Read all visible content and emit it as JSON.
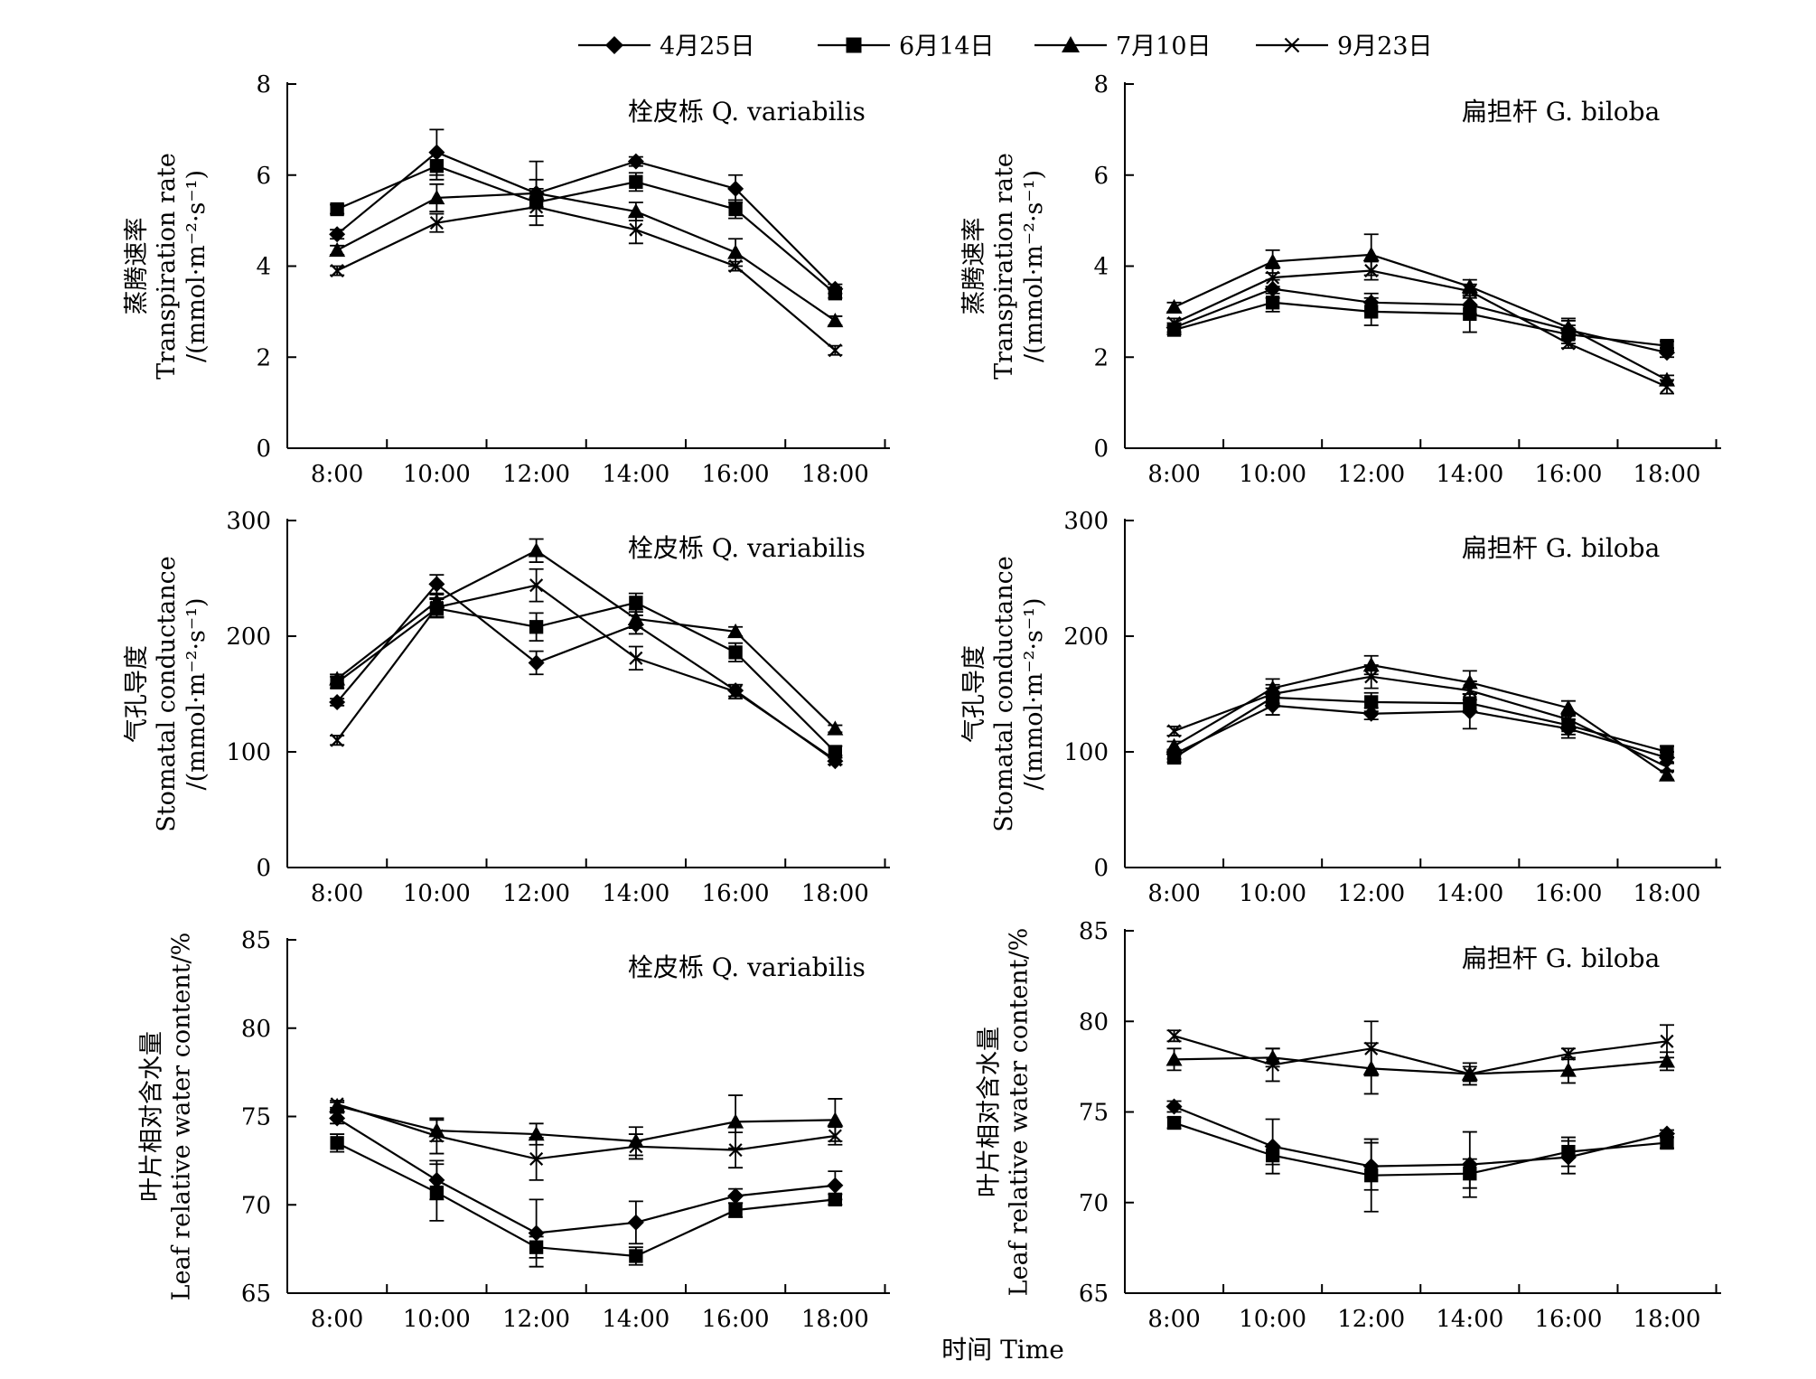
{
  "legend": [
    {
      "label": "4月25日",
      "marker": "diamond"
    },
    {
      "label": "6月14日",
      "marker": "square"
    },
    {
      "label": "7月10日",
      "marker": "triangle"
    },
    {
      "label": "9月23日",
      "marker": "cross"
    }
  ],
  "xlabel": "时间 Time",
  "chart_data": [
    {
      "type": "line",
      "id": "tr-q",
      "title": "栓皮栎 Q. variabilis",
      "ylabel": [
        "蒸腾速率",
        "Transpiration rate",
        "/(mmol·m⁻²·s⁻¹)"
      ],
      "categories": [
        "8:00",
        "10:00",
        "12:00",
        "14:00",
        "16:00",
        "18:00"
      ],
      "ylim": [
        0,
        8
      ],
      "yticks": [
        0,
        2,
        4,
        6,
        8
      ],
      "series": [
        {
          "name": "4月25日",
          "marker": "diamond",
          "values": [
            4.7,
            6.5,
            5.6,
            6.3,
            5.7,
            3.5
          ],
          "err": [
            0.1,
            0.5,
            0.7,
            0.1,
            0.3,
            0.1
          ]
        },
        {
          "name": "6月14日",
          "marker": "square",
          "values": [
            5.25,
            6.2,
            5.4,
            5.85,
            5.25,
            3.4
          ],
          "err": [
            0.1,
            0.3,
            0.3,
            0.2,
            0.2,
            0.1
          ]
        },
        {
          "name": "7月10日",
          "marker": "triangle",
          "values": [
            4.35,
            5.5,
            5.6,
            5.2,
            4.3,
            2.8
          ],
          "err": [
            0.1,
            0.3,
            0.3,
            0.2,
            0.3,
            0.1
          ]
        },
        {
          "name": "9月23日",
          "marker": "cross",
          "values": [
            3.9,
            4.95,
            5.3,
            4.8,
            4.0,
            2.15
          ],
          "err": [
            0.1,
            0.2,
            0.2,
            0.3,
            0.1,
            0.1
          ]
        }
      ]
    },
    {
      "type": "line",
      "id": "tr-g",
      "title": "扁担杆 G. biloba",
      "ylabel": [
        "蒸腾速率",
        "Transpiration rate",
        "/(mmol·m⁻²·s⁻¹)"
      ],
      "categories": [
        "8:00",
        "10:00",
        "12:00",
        "14:00",
        "16:00",
        "18:00"
      ],
      "ylim": [
        0,
        8
      ],
      "yticks": [
        0,
        2,
        4,
        6,
        8
      ],
      "series": [
        {
          "name": "4月25日",
          "marker": "diamond",
          "values": [
            2.65,
            3.5,
            3.2,
            3.15,
            2.6,
            2.1
          ],
          "err": [
            0.1,
            0.2,
            0.2,
            0.2,
            0.2,
            0.1
          ]
        },
        {
          "name": "6月14日",
          "marker": "square",
          "values": [
            2.6,
            3.2,
            3.0,
            2.95,
            2.5,
            2.25
          ],
          "err": [
            0.1,
            0.2,
            0.3,
            0.4,
            0.2,
            0.1
          ]
        },
        {
          "name": "7月10日",
          "marker": "triangle",
          "values": [
            3.1,
            4.1,
            4.25,
            3.55,
            2.65,
            1.5
          ],
          "err": [
            0.1,
            0.25,
            0.45,
            0.15,
            0.2,
            0.1
          ]
        },
        {
          "name": "9月23日",
          "marker": "cross",
          "values": [
            2.75,
            3.75,
            3.9,
            3.45,
            2.3,
            1.35
          ],
          "err": [
            0.1,
            0.2,
            0.2,
            0.15,
            0.1,
            0.15
          ]
        }
      ]
    },
    {
      "type": "line",
      "id": "gs-q",
      "title": "栓皮栎 Q. variabilis",
      "ylabel": [
        "气孔导度",
        "Stomatal conductance",
        "/(mmol·m⁻²·s⁻¹)"
      ],
      "categories": [
        "8:00",
        "10:00",
        "12:00",
        "14:00",
        "16:00",
        "18:00"
      ],
      "ylim": [
        0,
        300
      ],
      "yticks": [
        0,
        100,
        200,
        300
      ],
      "series": [
        {
          "name": "4月25日",
          "marker": "diamond",
          "values": [
            143,
            245,
            177,
            210,
            153,
            92
          ],
          "err": [
            3,
            8,
            10,
            8,
            5,
            3
          ]
        },
        {
          "name": "6月14日",
          "marker": "square",
          "values": [
            160,
            224,
            208,
            229,
            186,
            100
          ],
          "err": [
            5,
            8,
            12,
            8,
            8,
            5
          ]
        },
        {
          "name": "7月10日",
          "marker": "triangle",
          "values": [
            163,
            230,
            274,
            215,
            204,
            120
          ],
          "err": [
            4,
            6,
            10,
            8,
            4,
            3
          ]
        },
        {
          "name": "9月23日",
          "marker": "cross",
          "values": [
            110,
            225,
            244,
            181,
            152,
            93
          ],
          "err": [
            4,
            8,
            14,
            10,
            6,
            4
          ]
        }
      ]
    },
    {
      "type": "line",
      "id": "gs-g",
      "title": "扁担杆 G. biloba",
      "ylabel": [
        "气孔导度",
        "Stomatal conductance",
        "/(mmol·m⁻²·s⁻¹)"
      ],
      "categories": [
        "8:00",
        "10:00",
        "12:00",
        "14:00",
        "16:00",
        "18:00"
      ],
      "ylim": [
        0,
        300
      ],
      "yticks": [
        0,
        100,
        200,
        300
      ],
      "series": [
        {
          "name": "4月25日",
          "marker": "diamond",
          "values": [
            98,
            140,
            133,
            135,
            120,
            95
          ],
          "err": [
            4,
            8,
            5,
            15,
            8,
            5
          ]
        },
        {
          "name": "6月14日",
          "marker": "square",
          "values": [
            95,
            147,
            143,
            142,
            123,
            100
          ],
          "err": [
            4,
            8,
            8,
            8,
            8,
            5
          ]
        },
        {
          "name": "7月10日",
          "marker": "triangle",
          "values": [
            105,
            155,
            175,
            160,
            138,
            80
          ],
          "err": [
            4,
            8,
            8,
            10,
            6,
            4
          ]
        },
        {
          "name": "9月23日",
          "marker": "cross",
          "values": [
            118,
            150,
            165,
            153,
            128,
            87
          ],
          "err": [
            4,
            8,
            10,
            8,
            6,
            4
          ]
        }
      ]
    },
    {
      "type": "line",
      "id": "rwc-q",
      "title": "栓皮栎 Q. variabilis",
      "ylabel": [
        "叶片相对含水量",
        "Leaf relative water content/%"
      ],
      "categories": [
        "8:00",
        "10:00",
        "12:00",
        "14:00",
        "16:00",
        "18:00"
      ],
      "ylim": [
        65,
        85
      ],
      "yticks": [
        65,
        70,
        75,
        80,
        85
      ],
      "series": [
        {
          "name": "4月25日",
          "marker": "diamond",
          "values": [
            74.9,
            71.4,
            68.4,
            69.0,
            70.5,
            71.1
          ],
          "err": [
            0.3,
            1.1,
            1.9,
            1.2,
            0.4,
            0.8
          ]
        },
        {
          "name": "6月14日",
          "marker": "square",
          "values": [
            73.5,
            70.7,
            67.6,
            67.1,
            69.7,
            70.3
          ],
          "err": [
            0.5,
            1.6,
            0.6,
            0.5,
            0.4,
            0.3
          ]
        },
        {
          "name": "7月10日",
          "marker": "triangle",
          "values": [
            75.6,
            74.2,
            74.0,
            73.6,
            74.7,
            74.8
          ],
          "err": [
            0.2,
            0.6,
            0.6,
            0.8,
            1.5,
            1.2
          ]
        },
        {
          "name": "9月23日",
          "marker": "cross",
          "values": [
            75.7,
            73.9,
            72.6,
            73.3,
            73.1,
            73.9
          ],
          "err": [
            0.2,
            1.0,
            1.2,
            0.7,
            1.0,
            0.5
          ]
        }
      ]
    },
    {
      "type": "line",
      "id": "rwc-g",
      "title": "扁担杆 G. biloba",
      "ylabel": [
        "叶片相对含水量",
        "Leaf relative water content/%"
      ],
      "categories": [
        "8:00",
        "10:00",
        "12:00",
        "14:00",
        "16:00",
        "18:00"
      ],
      "ylim": [
        65,
        85
      ],
      "yticks": [
        65,
        70,
        75,
        80,
        85
      ],
      "series": [
        {
          "name": "4月25日",
          "marker": "diamond",
          "values": [
            75.3,
            73.1,
            72.0,
            72.1,
            72.5,
            73.8
          ],
          "err": [
            0.3,
            1.5,
            1.3,
            1.8,
            0.9,
            0.2
          ]
        },
        {
          "name": "6月14日",
          "marker": "square",
          "values": [
            74.4,
            72.6,
            71.5,
            71.6,
            72.8,
            73.3
          ],
          "err": [
            0.3,
            0.5,
            2.0,
            0.8,
            0.8,
            0.3
          ]
        },
        {
          "name": "7月10日",
          "marker": "triangle",
          "values": [
            77.9,
            78.0,
            77.4,
            77.1,
            77.3,
            77.8
          ],
          "err": [
            0.6,
            0.5,
            1.4,
            0.6,
            0.7,
            0.5
          ]
        },
        {
          "name": "9月23日",
          "marker": "cross",
          "values": [
            79.2,
            77.6,
            78.5,
            77.1,
            78.2,
            78.9
          ],
          "err": [
            0.3,
            0.9,
            1.5,
            0.4,
            0.3,
            0.9
          ]
        }
      ]
    }
  ]
}
